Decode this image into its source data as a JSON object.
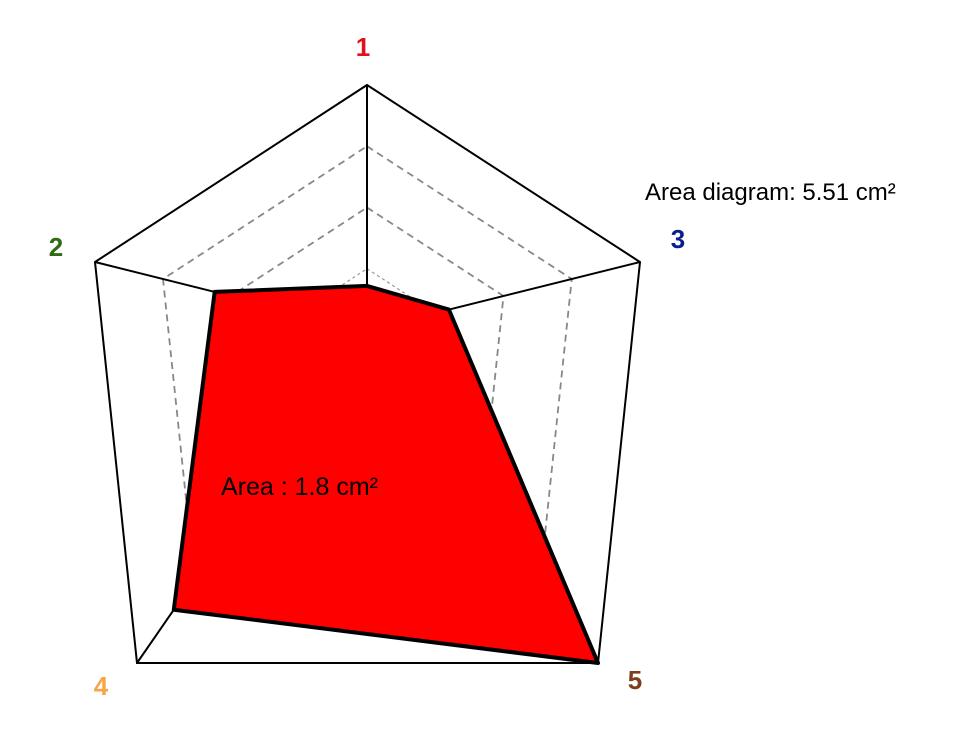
{
  "chart_data": {
    "type": "radar",
    "title": "",
    "axes": [
      {
        "label": "1",
        "color": "#e0101c"
      },
      {
        "label": "2",
        "color": "#2e6b12"
      },
      {
        "label": "3",
        "color": "#0a1f8f"
      },
      {
        "label": "4",
        "color": "#f7a545"
      },
      {
        "label": "5",
        "color": "#7a3f1c"
      }
    ],
    "range": [
      0,
      1
    ],
    "grid_levels": [
      0.25,
      0.5,
      0.75,
      1.0
    ],
    "series": [
      {
        "name": "Area",
        "values": [
          0.18,
          0.56,
          0.3,
          0.84,
          1.0
        ],
        "fill": "#ff0000",
        "stroke": "#000000"
      }
    ],
    "annotations": {
      "diagram_area": "Area diagram: 5.51 cm²",
      "polygon_area": "Area : 1.8 cm²"
    }
  }
}
